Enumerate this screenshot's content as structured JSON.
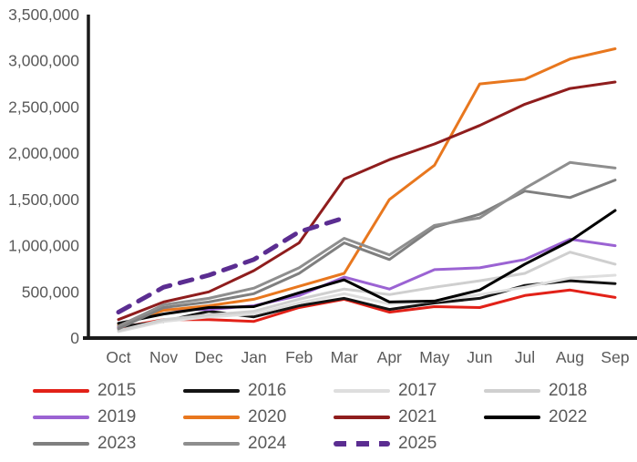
{
  "chart_data": {
    "type": "line",
    "title": "",
    "xlabel": "",
    "ylabel": "",
    "x": [
      "Oct",
      "Nov",
      "Dec",
      "Jan",
      "Feb",
      "Mar",
      "Apr",
      "May",
      "Jun",
      "Jul",
      "Aug",
      "Sep"
    ],
    "ylim": [
      0,
      3500000
    ],
    "y_tick_interval": 500000,
    "y_tick_labels": [
      "0",
      "500,000",
      "1,000,000",
      "1,500,000",
      "2,000,000",
      "2,500,000",
      "3,000,000",
      "3,500,000"
    ],
    "grid": false,
    "legend_position": "bottom",
    "axis_text_color": "#595959",
    "axis_line_color": "#1a1a1a",
    "series": [
      {
        "name": "2015",
        "color": "#e22118",
        "dashed": false,
        "values": [
          110000,
          200000,
          200000,
          180000,
          330000,
          420000,
          280000,
          340000,
          330000,
          460000,
          520000,
          440000
        ]
      },
      {
        "name": "2016",
        "color": "#141414",
        "dashed": false,
        "values": [
          120000,
          180000,
          290000,
          230000,
          350000,
          430000,
          310000,
          380000,
          430000,
          570000,
          620000,
          590000
        ]
      },
      {
        "name": "2017",
        "color": "#dedede",
        "dashed": false,
        "values": [
          70000,
          180000,
          230000,
          260000,
          380000,
          480000,
          370000,
          400000,
          470000,
          550000,
          650000,
          680000
        ]
      },
      {
        "name": "2018",
        "color": "#cfcfcf",
        "dashed": false,
        "values": [
          80000,
          200000,
          250000,
          290000,
          420000,
          530000,
          470000,
          550000,
          620000,
          700000,
          930000,
          800000
        ]
      },
      {
        "name": "2019",
        "color": "#9b63d3",
        "dashed": false,
        "values": [
          120000,
          310000,
          310000,
          350000,
          460000,
          660000,
          530000,
          740000,
          760000,
          850000,
          1070000,
          1000000
        ]
      },
      {
        "name": "2020",
        "color": "#e8771e",
        "dashed": false,
        "values": [
          140000,
          300000,
          350000,
          420000,
          560000,
          700000,
          1500000,
          1870000,
          2750000,
          2800000,
          3020000,
          3130000
        ]
      },
      {
        "name": "2021",
        "color": "#8f1d1d",
        "dashed": false,
        "values": [
          200000,
          390000,
          500000,
          730000,
          1030000,
          1720000,
          1930000,
          2100000,
          2300000,
          2530000,
          2700000,
          2770000
        ]
      },
      {
        "name": "2022",
        "color": "#000000",
        "dashed": false,
        "values": [
          160000,
          260000,
          330000,
          340000,
          490000,
          630000,
          390000,
          400000,
          520000,
          800000,
          1050000,
          1380000
        ]
      },
      {
        "name": "2023",
        "color": "#7f7f7f",
        "dashed": false,
        "values": [
          100000,
          330000,
          390000,
          480000,
          700000,
          1030000,
          850000,
          1200000,
          1340000,
          1590000,
          1520000,
          1710000
        ]
      },
      {
        "name": "2024",
        "color": "#8e8e8e",
        "dashed": false,
        "values": [
          130000,
          360000,
          430000,
          540000,
          760000,
          1080000,
          900000,
          1220000,
          1300000,
          1620000,
          1900000,
          1840000
        ]
      },
      {
        "name": "2025",
        "color": "#5b2d91",
        "dashed": true,
        "values": [
          280000,
          550000,
          680000,
          850000,
          1150000,
          1300000,
          null,
          null,
          null,
          null,
          null,
          null
        ]
      }
    ]
  }
}
